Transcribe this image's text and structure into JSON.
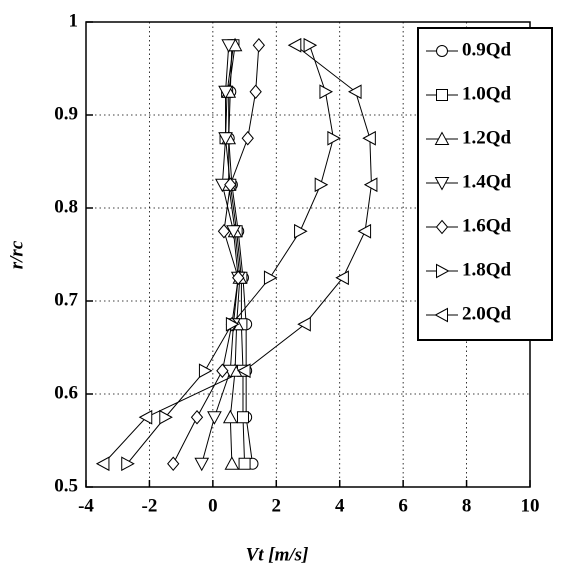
{
  "chart_data": {
    "type": "line",
    "xlabel": "Vt [m/s]",
    "ylabel": "r/rc",
    "xlim": [
      -4,
      10
    ],
    "xticks": [
      -4,
      -2,
      0,
      2,
      4,
      6,
      8,
      10
    ],
    "ylim": [
      0.5,
      1
    ],
    "yticks": [
      0.5,
      0.6,
      0.7,
      0.8,
      0.9,
      1
    ],
    "grid": true,
    "legend": "upper right",
    "series": [
      {
        "name": "0.9Qd",
        "color": "#000000",
        "marker": "circle",
        "x": [
          1.25,
          1.05,
          1.05,
          1.05,
          0.95,
          0.8,
          0.6,
          0.5,
          0.55,
          0.6
        ],
        "values": [
          0.525,
          0.575,
          0.625,
          0.675,
          0.725,
          0.775,
          0.825,
          0.875,
          0.925,
          0.975
        ]
      },
      {
        "name": "1.0Qd",
        "color": "#000000",
        "marker": "square",
        "x": [
          1.0,
          0.95,
          0.95,
          0.9,
          0.9,
          0.75,
          0.55,
          0.4,
          0.45,
          0.65
        ],
        "values": [
          0.525,
          0.575,
          0.625,
          0.675,
          0.725,
          0.775,
          0.825,
          0.875,
          0.925,
          0.975
        ]
      },
      {
        "name": "1.2Qd",
        "color": "#000000",
        "marker": "triangle-up",
        "x": [
          0.6,
          0.55,
          0.7,
          0.75,
          0.85,
          0.7,
          0.5,
          0.5,
          0.5,
          0.7
        ],
        "values": [
          0.525,
          0.575,
          0.625,
          0.675,
          0.725,
          0.775,
          0.825,
          0.875,
          0.925,
          0.975
        ]
      },
      {
        "name": "1.4Qd",
        "color": "#000000",
        "marker": "triangle-down",
        "x": [
          -0.35,
          0.05,
          0.55,
          0.65,
          0.8,
          0.65,
          0.3,
          0.4,
          0.4,
          0.5
        ],
        "values": [
          0.525,
          0.575,
          0.625,
          0.675,
          0.725,
          0.775,
          0.825,
          0.875,
          0.925,
          0.975
        ]
      },
      {
        "name": "1.6Qd",
        "color": "#000000",
        "marker": "diamond",
        "x": [
          -1.25,
          -0.5,
          0.3,
          0.6,
          0.8,
          0.35,
          0.55,
          1.1,
          1.35,
          1.45
        ],
        "values": [
          0.525,
          0.575,
          0.625,
          0.675,
          0.725,
          0.775,
          0.825,
          0.875,
          0.925,
          0.975
        ]
      },
      {
        "name": "1.8Qd",
        "color": "#000000",
        "marker": "triangle-right",
        "x": [
          -2.7,
          -1.5,
          -0.25,
          0.6,
          1.8,
          2.75,
          3.4,
          3.8,
          3.55,
          3.05
        ],
        "values": [
          0.525,
          0.575,
          0.625,
          0.675,
          0.725,
          0.775,
          0.825,
          0.875,
          0.925,
          0.975
        ]
      },
      {
        "name": "2.0Qd",
        "color": "#000000",
        "marker": "triangle-left",
        "x": [
          -3.45,
          -2.1,
          1.0,
          2.9,
          4.1,
          4.8,
          5.0,
          4.95,
          4.5,
          2.6
        ],
        "values": [
          0.525,
          0.575,
          0.625,
          0.675,
          0.725,
          0.775,
          0.825,
          0.875,
          0.925,
          0.975
        ]
      }
    ]
  }
}
